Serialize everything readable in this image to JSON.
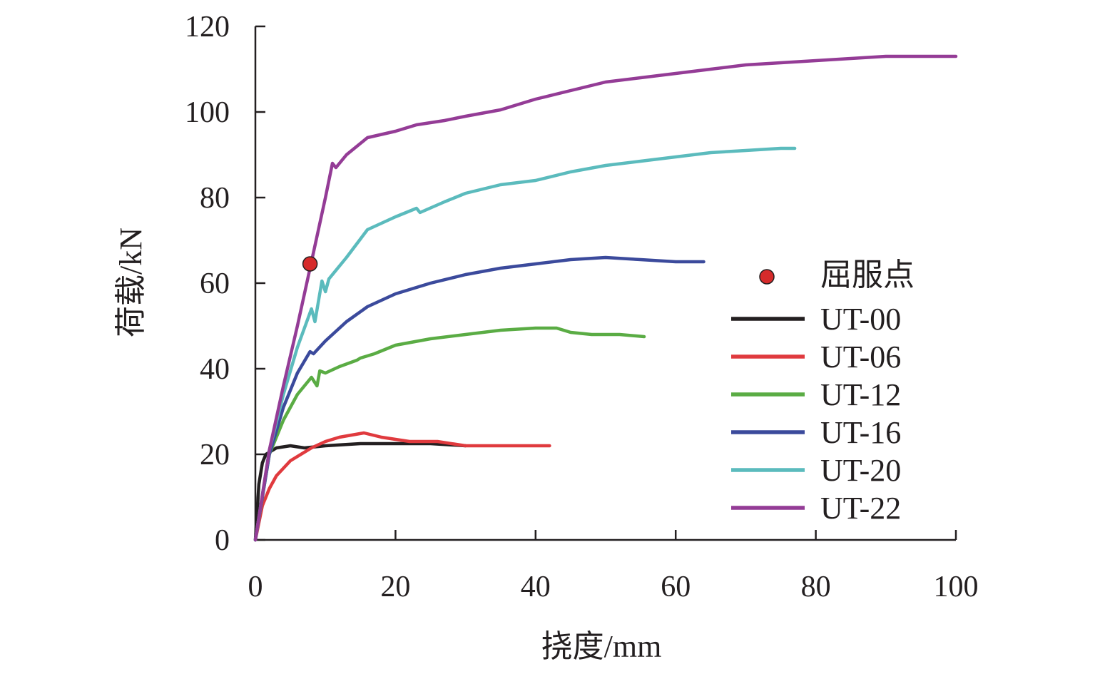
{
  "chart_data": {
    "type": "line",
    "xlabel": "挠度/mm",
    "ylabel": "荷载/kN",
    "xlim": [
      0,
      100
    ],
    "ylim": [
      0,
      120
    ],
    "xticks": [
      0,
      20,
      40,
      60,
      80,
      100
    ],
    "yticks": [
      0,
      20,
      40,
      60,
      80,
      100,
      120
    ],
    "grid": false,
    "legend_position": "right",
    "yield_point": {
      "label": "屈服点",
      "x": 7.8,
      "y": 64.5,
      "color": "#d62b2b"
    },
    "series": [
      {
        "name": "UT-00",
        "color": "#231f20",
        "x": [
          0,
          0.5,
          1,
          1.5,
          3,
          5,
          7,
          10,
          15,
          20,
          25,
          30
        ],
        "y": [
          0,
          13,
          18,
          20,
          21.5,
          22,
          21.5,
          22,
          22.5,
          22.5,
          22.5,
          22
        ]
      },
      {
        "name": "UT-06",
        "color": "#e03a3e",
        "x": [
          0,
          1,
          2,
          3,
          5,
          8,
          10,
          12,
          15.5,
          18,
          22,
          26,
          30,
          35,
          40,
          42
        ],
        "y": [
          0,
          8,
          12,
          15,
          18.5,
          21.5,
          23,
          24,
          25,
          24,
          23,
          23,
          22,
          22,
          22,
          22
        ]
      },
      {
        "name": "UT-12",
        "color": "#5aac44",
        "x": [
          0,
          2,
          4,
          6,
          8,
          8.8,
          9.2,
          10,
          12,
          14.5,
          15,
          17,
          20,
          25,
          30,
          35,
          40,
          43,
          45,
          48,
          52,
          55.5
        ],
        "y": [
          0,
          20,
          28,
          34,
          38,
          36,
          39.5,
          39,
          40.5,
          42,
          42.5,
          43.5,
          45.5,
          47,
          48,
          49,
          49.5,
          49.5,
          48.5,
          48,
          48,
          47.5
        ]
      },
      {
        "name": "UT-16",
        "color": "#3b4a9c",
        "x": [
          0,
          2,
          4,
          6,
          7.8,
          8.3,
          10,
          13,
          16,
          20,
          25,
          30,
          35,
          40,
          45,
          50,
          55,
          60,
          64
        ],
        "y": [
          0,
          20,
          31,
          39,
          44,
          43.5,
          46.5,
          51,
          54.5,
          57.5,
          60,
          62,
          63.5,
          64.5,
          65.5,
          66,
          65.5,
          65,
          65
        ]
      },
      {
        "name": "UT-20",
        "color": "#5bbbbd",
        "x": [
          0,
          2,
          4,
          6,
          8,
          8.5,
          9.5,
          10,
          10.5,
          13,
          16,
          20,
          23,
          23.5,
          27,
          30,
          35,
          40,
          45,
          50,
          55,
          60,
          65,
          70,
          75,
          77
        ],
        "y": [
          0,
          21,
          34,
          45,
          54,
          51,
          60.5,
          58,
          61,
          66,
          72.5,
          75.5,
          77.5,
          76.5,
          79,
          81,
          83,
          84,
          86,
          87.5,
          88.5,
          89.5,
          90.5,
          91,
          91.5,
          91.5
        ]
      },
      {
        "name": "UT-22",
        "color": "#943c96",
        "x": [
          0,
          2,
          4,
          6,
          8,
          10,
          11,
          11.5,
          13,
          16,
          20,
          23,
          27,
          30,
          35,
          40,
          45,
          50,
          55,
          60,
          65,
          70,
          80,
          90,
          95,
          100
        ],
        "y": [
          0,
          21,
          36,
          50,
          65,
          80,
          88,
          87,
          90,
          94,
          95.5,
          97,
          98,
          99,
          100.5,
          103,
          105,
          107,
          108,
          109,
          110,
          111,
          112,
          113,
          113,
          113
        ]
      }
    ]
  }
}
